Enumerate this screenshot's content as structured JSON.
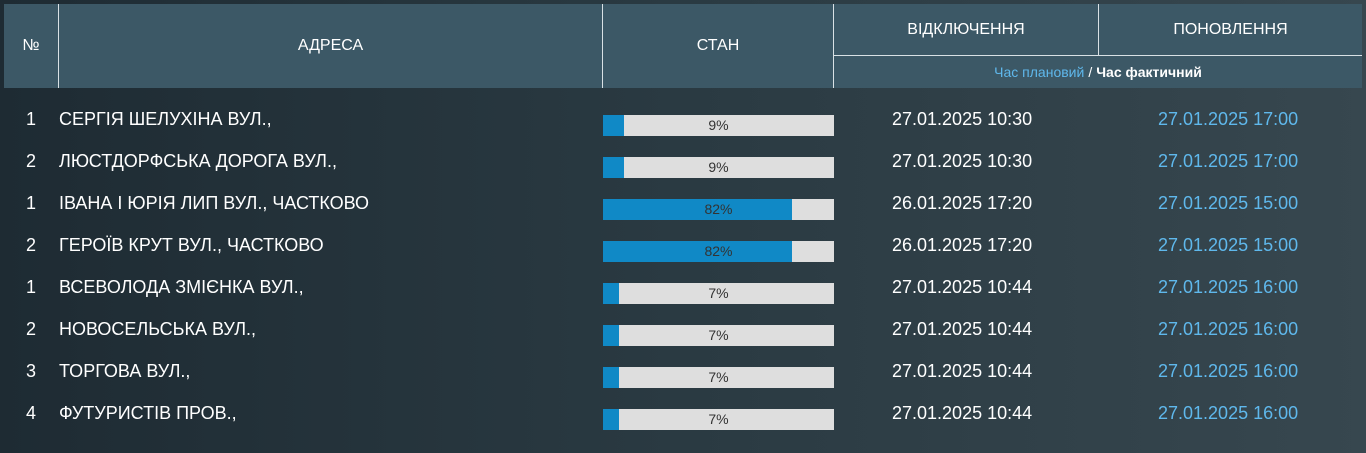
{
  "colors": {
    "header_bg": "#3c5866",
    "accent_blue": "#5fb8ec",
    "bar_fill": "#1089c6",
    "bar_track": "#dedede"
  },
  "header": {
    "num": "№",
    "address": "АДРЕСА",
    "state": "СТАН",
    "outage": "ВІДКЛЮЧЕННЯ",
    "update": "ПОНОВЛЕННЯ",
    "planned_label": "Час плановий",
    "separator": "/",
    "actual_label": "Час фактичний"
  },
  "rows": [
    {
      "num": "1",
      "address": "СЕРГІЯ ШЕЛУХІНА ВУЛ.,",
      "progress": 9,
      "progress_label": "9%",
      "outage": "27.01.2025 10:30",
      "update": "27.01.2025 17:00"
    },
    {
      "num": "2",
      "address": "ЛЮСТДОРФСЬКА ДОРОГА ВУЛ.,",
      "progress": 9,
      "progress_label": "9%",
      "outage": "27.01.2025 10:30",
      "update": "27.01.2025 17:00"
    },
    {
      "num": "1",
      "address": "ІВАНА І ЮРІЯ ЛИП ВУЛ., ЧАСТКОВО",
      "progress": 82,
      "progress_label": "82%",
      "outage": "26.01.2025 17:20",
      "update": "27.01.2025 15:00"
    },
    {
      "num": "2",
      "address": "ГЕРОЇВ КРУТ ВУЛ., ЧАСТКОВО",
      "progress": 82,
      "progress_label": "82%",
      "outage": "26.01.2025 17:20",
      "update": "27.01.2025 15:00"
    },
    {
      "num": "1",
      "address": "ВСЕВОЛОДА ЗМІЄНКА ВУЛ.,",
      "progress": 7,
      "progress_label": "7%",
      "outage": "27.01.2025 10:44",
      "update": "27.01.2025 16:00"
    },
    {
      "num": "2",
      "address": "НОВОСЕЛЬСЬКА ВУЛ.,",
      "progress": 7,
      "progress_label": "7%",
      "outage": "27.01.2025 10:44",
      "update": "27.01.2025 16:00"
    },
    {
      "num": "3",
      "address": "ТОРГОВА ВУЛ.,",
      "progress": 7,
      "progress_label": "7%",
      "outage": "27.01.2025 10:44",
      "update": "27.01.2025 16:00"
    },
    {
      "num": "4",
      "address": "ФУТУРИСТІВ ПРОВ.,",
      "progress": 7,
      "progress_label": "7%",
      "outage": "27.01.2025 10:44",
      "update": "27.01.2025 16:00"
    }
  ]
}
